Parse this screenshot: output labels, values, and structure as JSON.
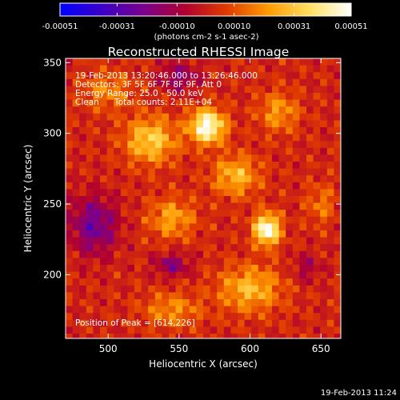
{
  "colorbar": {
    "tick_labels": [
      "-0.00051",
      "-0.00031",
      "-0.00010",
      "0.00010",
      "0.00031",
      "0.00051"
    ],
    "tick_values": [
      -0.00051,
      -0.00031,
      -0.0001,
      0.0001,
      0.00031,
      0.00051
    ],
    "range": [
      -0.00051,
      0.00051
    ],
    "unit_label": "(photons cm-2 s-1 asec-2)",
    "colors": [
      "#0000ff",
      "#3a00c8",
      "#7a008c",
      "#b00030",
      "#e03a00",
      "#ff9a00",
      "#ffe060",
      "#ffffff"
    ]
  },
  "chart_data": {
    "type": "heatmap",
    "title": "Reconstructed RHESSI Image",
    "xlabel": "Heliocentric X (arcsec)",
    "ylabel": "Heliocentric Y (arcsec)",
    "xlim": [
      470,
      664
    ],
    "ylim": [
      155,
      353
    ],
    "xticks": [
      500,
      550,
      600,
      650
    ],
    "yticks": [
      200,
      250,
      300,
      350
    ],
    "x_tick_labels": [
      "500",
      "550",
      "600",
      "650"
    ],
    "y_tick_labels": [
      "200",
      "250",
      "300",
      "350"
    ],
    "peak_position": [
      614,
      226
    ],
    "intensity_sources": [
      {
        "x": 570,
        "y": 305,
        "rx": 12,
        "ry": 12,
        "value": 0.00051
      },
      {
        "x": 612,
        "y": 232,
        "rx": 9,
        "ry": 11,
        "value": 0.00051
      },
      {
        "x": 530,
        "y": 295,
        "rx": 18,
        "ry": 16,
        "value": 0.00031
      },
      {
        "x": 590,
        "y": 270,
        "rx": 16,
        "ry": 14,
        "value": 0.00026
      },
      {
        "x": 545,
        "y": 240,
        "rx": 16,
        "ry": 14,
        "value": 0.00022
      },
      {
        "x": 600,
        "y": 190,
        "rx": 22,
        "ry": 16,
        "value": 0.00026
      },
      {
        "x": 545,
        "y": 175,
        "rx": 20,
        "ry": 12,
        "value": 0.00018
      },
      {
        "x": 500,
        "y": 330,
        "rx": 18,
        "ry": 14,
        "value": 0.00016
      },
      {
        "x": 620,
        "y": 315,
        "rx": 14,
        "ry": 14,
        "value": 0.0002
      },
      {
        "x": 650,
        "y": 250,
        "rx": 10,
        "ry": 14,
        "value": 0.00014
      },
      {
        "x": 490,
        "y": 235,
        "rx": 16,
        "ry": 20,
        "value": -0.00026
      },
      {
        "x": 545,
        "y": 207,
        "rx": 12,
        "ry": 8,
        "value": -0.0002
      },
      {
        "x": 550,
        "y": 340,
        "rx": 14,
        "ry": 10,
        "value": -0.00018
      },
      {
        "x": 640,
        "y": 205,
        "rx": 10,
        "ry": 10,
        "value": -0.00012
      }
    ]
  },
  "info": {
    "line1": "19-Feb-2013 13:20:46.000 to 13:26:46.000",
    "line2": "Detectors: 3F 5F 6F 7F 8F 9F, Att 0",
    "line3": "Energy Range: 25.0 - 50.0 keV",
    "line4_method": "Clean",
    "line4_counts": "Total counts: 2.11E+04",
    "peak_text": "Position of Peak = [614,226]"
  },
  "footer": {
    "timestamp": "19-Feb-2013 11:24"
  }
}
